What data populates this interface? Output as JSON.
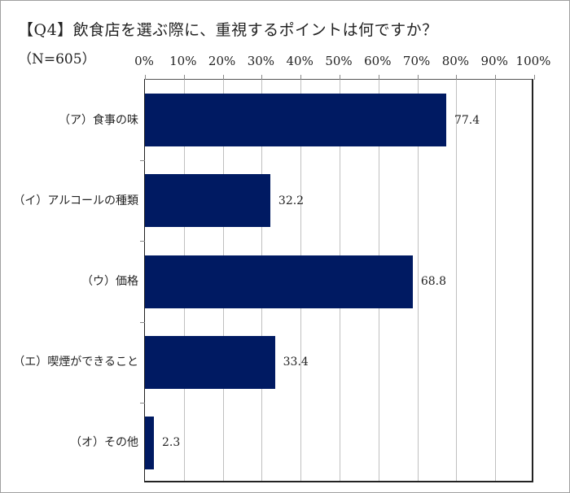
{
  "header": {
    "title": "【Q4】飲食店を選ぶ際に、重視するポイントは何ですか？",
    "sample_size": "（N=605）"
  },
  "colors": {
    "bar": "#001a62",
    "grid": "#c0c0c0",
    "axis": "#222222"
  },
  "chart_data": {
    "type": "bar",
    "orientation": "horizontal",
    "title": "【Q4】飲食店を選ぶ際に、重視するポイントは何ですか？",
    "subtitle": "（N=605）",
    "categories": [
      "（ア）食事の味",
      "（イ）アルコールの種類",
      "（ウ）価格",
      "（エ）喫煙ができること",
      "（オ）その他"
    ],
    "values": [
      77.4,
      32.2,
      68.8,
      33.4,
      2.3
    ],
    "value_labels": [
      "77.4",
      "32.2",
      "68.8",
      "33.4",
      "2.3"
    ],
    "xlabel": "",
    "ylabel": "",
    "xlim": [
      0,
      100
    ],
    "xticks": [
      "0%",
      "10%",
      "20%",
      "30%",
      "40%",
      "50%",
      "60%",
      "70%",
      "80%",
      "90%",
      "100%"
    ],
    "x_axis_position": "top",
    "grid": true,
    "legend": null
  }
}
